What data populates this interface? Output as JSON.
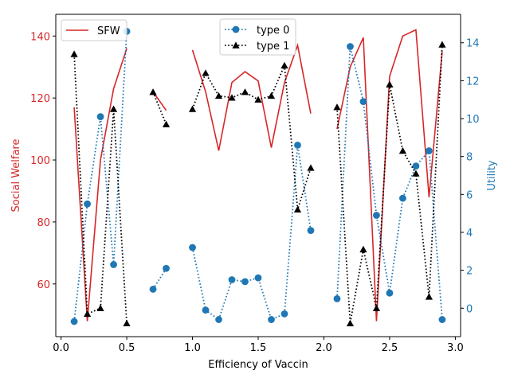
{
  "chart_data": {
    "type": "line",
    "xlabel": "Efficiency of Vaccin",
    "ylabel_left": "Social Welfare",
    "ylabel_right": "Utility",
    "xlim": [
      -0.04,
      3.04
    ],
    "ylim_left": [
      43,
      147
    ],
    "ylim_right": [
      -1.5,
      15.5
    ],
    "x_ticks": [
      0.0,
      0.5,
      1.0,
      1.5,
      2.0,
      2.5,
      3.0
    ],
    "x_tick_labels": [
      "0.0",
      "0.5",
      "1.0",
      "1.5",
      "2.0",
      "2.5",
      "3.0"
    ],
    "left_ticks": [
      60,
      80,
      100,
      120,
      140
    ],
    "left_tick_labels": [
      "60",
      "80",
      "100",
      "120",
      "140"
    ],
    "right_ticks": [
      0,
      2,
      4,
      6,
      8,
      10,
      12,
      14
    ],
    "right_tick_labels": [
      "0",
      "2",
      "4",
      "6",
      "8",
      "10",
      "12",
      "14"
    ],
    "grid": false,
    "colors": {
      "left_axis": "#d62728",
      "right_axis": "#1f77b4",
      "sfw": "#d62728",
      "type0": "#1f77b4",
      "type1": "#000000"
    },
    "series": [
      {
        "name": "SFW",
        "axis": "left",
        "style": "solid",
        "marker": "none",
        "segments": [
          {
            "x": [
              0.1,
              0.2,
              0.3,
              0.4,
              0.5
            ],
            "y": [
              117,
              48,
              100,
              123,
              136
            ]
          },
          {
            "x": [
              0.7,
              0.8
            ],
            "y": [
              122,
              116
            ]
          },
          {
            "x": [
              1.0,
              1.1,
              1.2,
              1.3,
              1.4,
              1.5,
              1.6,
              1.7,
              1.8,
              1.9
            ],
            "y": [
              135.5,
              122,
              103,
              125,
              128.5,
              125.5,
              104,
              125,
              137,
              115
            ]
          },
          {
            "x": [
              2.1,
              2.2,
              2.3,
              2.4,
              2.5,
              2.6,
              2.7,
              2.8,
              2.9
            ],
            "y": [
              110,
              130,
              139.5,
              48,
              127,
              140,
              142,
              88,
              135
            ]
          }
        ]
      },
      {
        "name": "type 0",
        "axis": "right",
        "style": "dotted",
        "marker": "circle",
        "segments": [
          {
            "x": [
              0.1,
              0.2,
              0.3,
              0.4,
              0.5
            ],
            "y": [
              -0.7,
              5.5,
              10.1,
              2.3,
              14.6
            ]
          },
          {
            "x": [
              0.7,
              0.8
            ],
            "y": [
              1.0,
              2.1
            ]
          },
          {
            "x": [
              1.0,
              1.1,
              1.2,
              1.3,
              1.4,
              1.5,
              1.6,
              1.7,
              1.8,
              1.9
            ],
            "y": [
              3.2,
              -0.1,
              -0.6,
              1.5,
              1.4,
              1.6,
              -0.6,
              -0.3,
              8.6,
              4.1
            ]
          },
          {
            "x": [
              2.1,
              2.2,
              2.3,
              2.4,
              2.5,
              2.6,
              2.7,
              2.8,
              2.9
            ],
            "y": [
              0.5,
              13.8,
              10.9,
              4.9,
              0.8,
              5.8,
              7.5,
              8.3,
              -0.6
            ]
          }
        ]
      },
      {
        "name": "type 1",
        "axis": "right",
        "style": "dotted",
        "marker": "triangle",
        "segments": [
          {
            "x": [
              0.1,
              0.2,
              0.3,
              0.4,
              0.5
            ],
            "y": [
              13.4,
              -0.3,
              0.0,
              10.5,
              -0.8
            ]
          },
          {
            "x": [
              0.7,
              0.8
            ],
            "y": [
              11.4,
              9.7
            ]
          },
          {
            "x": [
              1.0,
              1.1,
              1.2,
              1.3,
              1.4,
              1.5,
              1.6,
              1.7,
              1.8,
              1.9
            ],
            "y": [
              10.5,
              12.4,
              11.2,
              11.1,
              11.4,
              11.0,
              11.2,
              12.8,
              5.2,
              7.4
            ]
          },
          {
            "x": [
              2.1,
              2.2,
              2.3,
              2.4,
              2.5,
              2.6,
              2.7,
              2.8,
              2.9
            ],
            "y": [
              10.6,
              -0.8,
              3.1,
              0.0,
              11.8,
              8.3,
              7.1,
              0.6,
              13.9
            ]
          }
        ]
      }
    ],
    "legends": [
      {
        "placement": "upper-left",
        "entries": [
          "SFW"
        ]
      },
      {
        "placement": "upper-center",
        "entries": [
          "type 0",
          "type 1"
        ]
      }
    ]
  }
}
